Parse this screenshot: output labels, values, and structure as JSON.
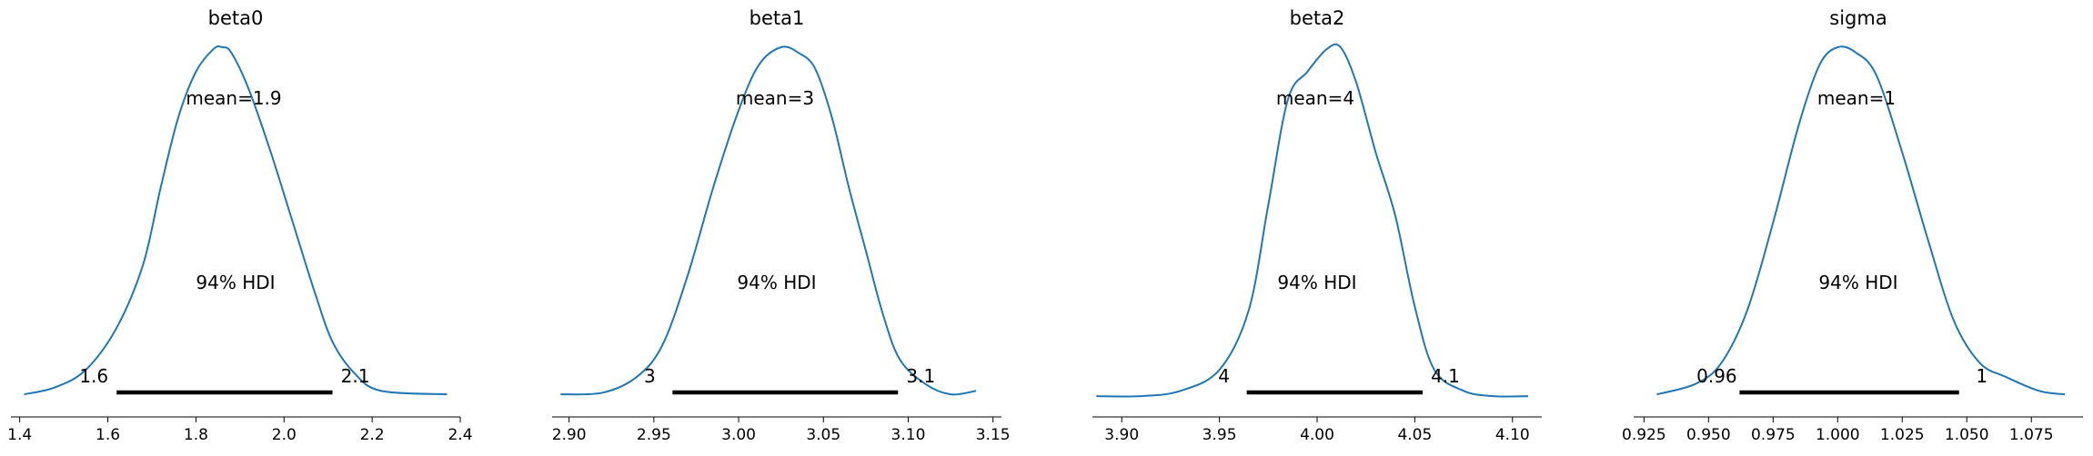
{
  "chart_data": [
    {
      "type": "area",
      "title": "beta0",
      "xlim": [
        1.38,
        2.4
      ],
      "ticks": [
        "1.4",
        "1.6",
        "1.8",
        "2.0",
        "2.2",
        "2.4"
      ],
      "tick_values": [
        1.4,
        1.6,
        1.8,
        2.0,
        2.2,
        2.4
      ],
      "mean_label": "mean=1.9",
      "hdi_label": "94% HDI",
      "hdi": [
        1.62,
        2.11
      ],
      "hdi_lower_label": "1.6",
      "hdi_upper_label": "2.1",
      "density": [
        [
          1.41,
          0.01
        ],
        [
          1.48,
          0.03
        ],
        [
          1.55,
          0.08
        ],
        [
          1.62,
          0.2
        ],
        [
          1.68,
          0.38
        ],
        [
          1.72,
          0.6
        ],
        [
          1.76,
          0.8
        ],
        [
          1.8,
          0.93
        ],
        [
          1.84,
          0.995
        ],
        [
          1.86,
          1.0
        ],
        [
          1.88,
          0.985
        ],
        [
          1.92,
          0.88
        ],
        [
          1.97,
          0.7
        ],
        [
          2.02,
          0.5
        ],
        [
          2.07,
          0.3
        ],
        [
          2.11,
          0.16
        ],
        [
          2.16,
          0.07
        ],
        [
          2.22,
          0.02
        ],
        [
          2.37,
          0.01
        ]
      ]
    },
    {
      "type": "area",
      "title": "beta1",
      "xlim": [
        2.89,
        3.155
      ],
      "ticks": [
        "2.90",
        "2.95",
        "3.00",
        "3.05",
        "3.10",
        "3.15"
      ],
      "tick_values": [
        2.9,
        2.95,
        3.0,
        3.05,
        3.1,
        3.15
      ],
      "mean_label": "mean=3",
      "hdi_label": "94% HDI",
      "hdi": [
        2.961,
        3.094
      ],
      "hdi_lower_label": "3",
      "hdi_upper_label": "3.1",
      "density": [
        [
          2.895,
          0.01
        ],
        [
          2.92,
          0.015
        ],
        [
          2.94,
          0.06
        ],
        [
          2.955,
          0.15
        ],
        [
          2.97,
          0.35
        ],
        [
          2.985,
          0.6
        ],
        [
          3.0,
          0.82
        ],
        [
          3.012,
          0.95
        ],
        [
          3.025,
          1.0
        ],
        [
          3.035,
          0.985
        ],
        [
          3.045,
          0.94
        ],
        [
          3.055,
          0.8
        ],
        [
          3.065,
          0.6
        ],
        [
          3.075,
          0.42
        ],
        [
          3.085,
          0.24
        ],
        [
          3.095,
          0.11
        ],
        [
          3.11,
          0.04
        ],
        [
          3.125,
          0.01
        ],
        [
          3.14,
          0.02
        ]
      ]
    },
    {
      "type": "area",
      "title": "beta2",
      "xlim": [
        3.885,
        4.115
      ],
      "ticks": [
        "3.90",
        "3.95",
        "4.00",
        "4.05",
        "4.10"
      ],
      "tick_values": [
        3.9,
        3.95,
        4.0,
        4.05,
        4.1
      ],
      "mean_label": "mean=4",
      "hdi_label": "94% HDI",
      "hdi": [
        3.964,
        4.054
      ],
      "hdi_lower_label": "4",
      "hdi_upper_label": "4.1",
      "density": [
        [
          3.887,
          0.005
        ],
        [
          3.91,
          0.005
        ],
        [
          3.93,
          0.02
        ],
        [
          3.95,
          0.08
        ],
        [
          3.965,
          0.25
        ],
        [
          3.975,
          0.55
        ],
        [
          3.985,
          0.85
        ],
        [
          3.995,
          0.93
        ],
        [
          4.005,
          0.995
        ],
        [
          4.012,
          1.0
        ],
        [
          4.02,
          0.9
        ],
        [
          4.03,
          0.7
        ],
        [
          4.04,
          0.52
        ],
        [
          4.05,
          0.26
        ],
        [
          4.06,
          0.08
        ],
        [
          4.075,
          0.02
        ],
        [
          4.09,
          0.005
        ],
        [
          4.108,
          0.005
        ]
      ]
    },
    {
      "type": "area",
      "title": "sigma",
      "xlim": [
        0.921,
        1.095
      ],
      "ticks": [
        "0.925",
        "0.950",
        "0.975",
        "1.000",
        "1.025",
        "1.050",
        "1.075"
      ],
      "tick_values": [
        0.925,
        0.95,
        0.975,
        1.0,
        1.025,
        1.05,
        1.075
      ],
      "mean_label": "mean=1",
      "hdi_label": "94% HDI",
      "hdi": [
        0.962,
        1.047
      ],
      "hdi_lower_label": "0.96",
      "hdi_upper_label": "1",
      "density": [
        [
          0.93,
          0.01
        ],
        [
          0.945,
          0.04
        ],
        [
          0.955,
          0.1
        ],
        [
          0.965,
          0.25
        ],
        [
          0.975,
          0.5
        ],
        [
          0.985,
          0.78
        ],
        [
          0.993,
          0.95
        ],
        [
          1.0,
          1.0
        ],
        [
          1.007,
          0.985
        ],
        [
          1.015,
          0.92
        ],
        [
          1.025,
          0.7
        ],
        [
          1.035,
          0.45
        ],
        [
          1.045,
          0.22
        ],
        [
          1.055,
          0.1
        ],
        [
          1.065,
          0.06
        ],
        [
          1.078,
          0.02
        ],
        [
          1.088,
          0.01
        ]
      ]
    }
  ],
  "style": {
    "line_color": "#1f77b4",
    "hdi_color": "#000000",
    "axis_color": "#000000"
  }
}
